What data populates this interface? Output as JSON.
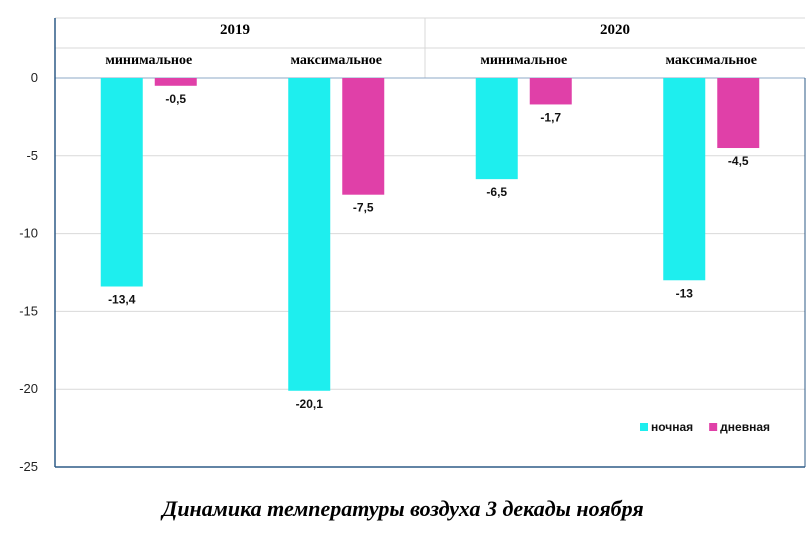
{
  "chart_data": {
    "type": "bar",
    "title": "Динамика температуры воздуха 3 декады ноября",
    "groups": [
      {
        "label": "2019",
        "categories": [
          "минимальное",
          "максимальное"
        ]
      },
      {
        "label": "2020",
        "categories": [
          "минимальное",
          "максимальное"
        ]
      }
    ],
    "categories": [
      "минимальное",
      "максимальное",
      "минимальное",
      "максимальное"
    ],
    "series": [
      {
        "name": "ночная",
        "color": "#1eeeee",
        "values": [
          -13.4,
          -20.1,
          -6.5,
          -13
        ],
        "labels": [
          "-13,4",
          "-20,1",
          "-6,5",
          "-13"
        ]
      },
      {
        "name": "дневная",
        "color": "#e040a8",
        "values": [
          -0.5,
          -7.5,
          -1.7,
          -4.5
        ],
        "labels": [
          "-0,5",
          "-7,5",
          "-1,7",
          "-4,5"
        ]
      }
    ],
    "yticks": [
      0,
      -5,
      -10,
      -15,
      -20,
      -25
    ],
    "ytick_labels": [
      "0",
      "-5",
      "-10",
      "-15",
      "-20",
      "-25"
    ],
    "ylim": [
      -25,
      0
    ],
    "grid": true,
    "legend_position": "bottom-right",
    "axis_color": "#2e5b87"
  }
}
